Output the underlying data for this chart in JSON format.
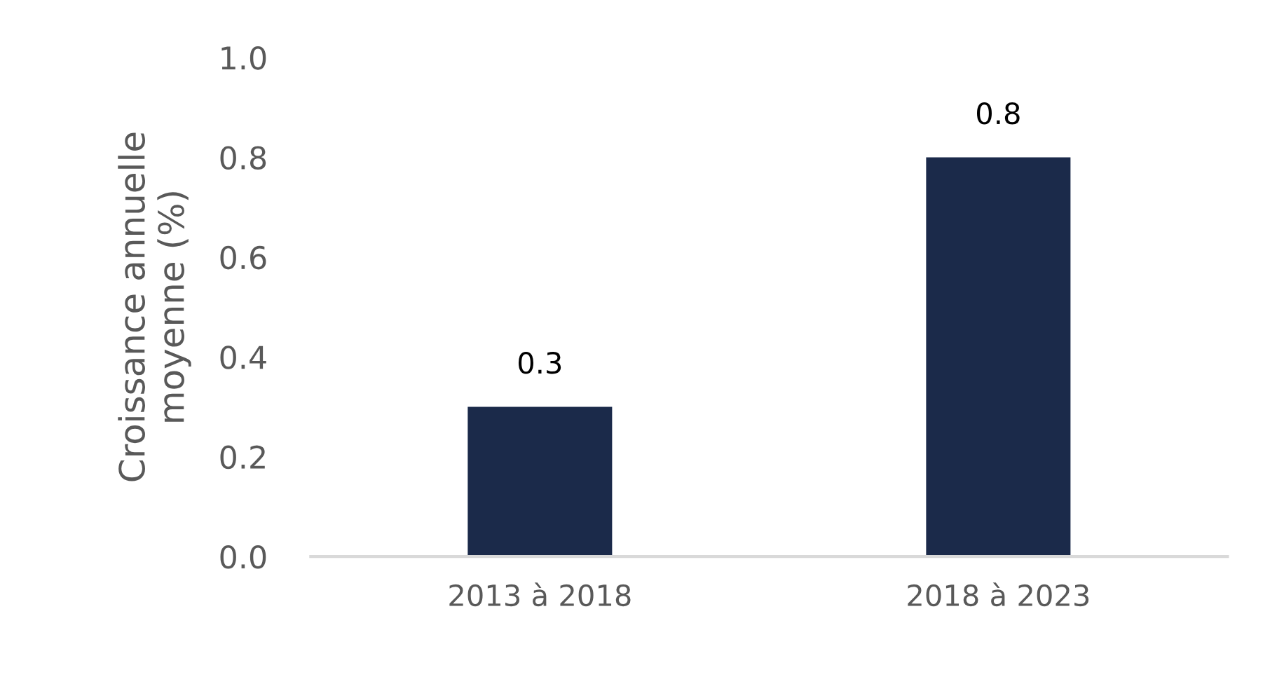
{
  "chart_data": {
    "type": "bar",
    "ylabel": "Croissance annuelle\nmoyenne (%)",
    "categories": [
      "2013 à 2018",
      "2018 à 2023"
    ],
    "series": [
      {
        "color": "#1b2a4a",
        "values": [
          0.3,
          0.8
        ]
      }
    ],
    "ylim": [
      0,
      1.0
    ],
    "yticks": [
      {
        "value": 0,
        "label": "0.0"
      },
      0.2,
      0.4,
      0.6,
      0.8,
      {
        "value": 1,
        "label": "1.0"
      }
    ],
    "data_labels": true,
    "grid": false,
    "legend": false
  }
}
